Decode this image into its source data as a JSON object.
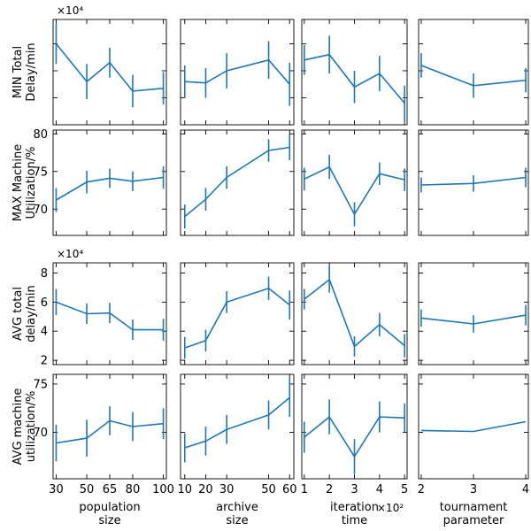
{
  "chart_data": {
    "type": "line",
    "grid": false,
    "line_color": "#1f77b4",
    "columns": [
      {
        "xlabel": "population\nsize",
        "x": [
          30,
          50,
          65,
          80,
          100
        ],
        "xticks": [
          30,
          50,
          65,
          80,
          100
        ],
        "xtick_labels": [
          "30",
          "50",
          "65",
          "80",
          "100"
        ],
        "xlim": [
          28,
          102
        ],
        "offset": ""
      },
      {
        "xlabel": "archive\nsize",
        "x": [
          10,
          20,
          30,
          50,
          60
        ],
        "xticks": [
          10,
          20,
          30,
          50,
          60
        ],
        "xtick_labels": [
          "10",
          "20",
          "30",
          "50",
          "60"
        ],
        "xlim": [
          8,
          62
        ],
        "offset": ""
      },
      {
        "xlabel": "iteration\ntime",
        "x": [
          1,
          2,
          3,
          4,
          5
        ],
        "xticks": [
          1,
          2,
          3,
          4,
          5
        ],
        "xtick_labels": [
          "1",
          "2",
          "3",
          "4",
          "5"
        ],
        "xlim": [
          0.9,
          5.1
        ],
        "offset": "×10²"
      },
      {
        "xlabel": "tournament\nparameter",
        "x": [
          2,
          3,
          4
        ],
        "xticks": [
          2,
          3,
          4
        ],
        "xtick_labels": [
          "2",
          "3",
          "4"
        ],
        "xlim": [
          1.95,
          4.05
        ],
        "offset": ""
      }
    ],
    "rows": [
      {
        "ylabel": "MIN Total\nDelay/min",
        "ylim": [
          10000,
          49000
        ],
        "yticks": [
          20000,
          30000,
          40000
        ],
        "ytick_labels": [
          "",
          "",
          ""
        ],
        "offset": "×10⁴",
        "series": [
          {
            "y": [
              40000,
              26000,
              33000,
              22500,
              23500
            ],
            "err": [
              7500,
              6500,
              5500,
              6000,
              6000
            ]
          },
          {
            "y": [
              26000,
              25500,
              30000,
              34000,
              25000
            ],
            "err": [
              6000,
              5500,
              6500,
              7000,
              8000
            ]
          },
          {
            "y": [
              34000,
              36000,
              24000,
              29000,
              18000
            ],
            "err": [
              5500,
              7000,
              6000,
              6500,
              6500
            ]
          },
          {
            "y": [
              32000,
              24500,
              26500
            ],
            "err": [
              4500,
              4500,
              4500
            ]
          }
        ]
      },
      {
        "ylabel": "MAX Machine\nUtilization/%",
        "ylim": [
          66.5,
          80.5
        ],
        "yticks": [
          70,
          75,
          80
        ],
        "ytick_labels": [
          "70",
          "75",
          "80"
        ],
        "offset": "",
        "series": [
          {
            "y": [
              71.2,
              73.6,
              74.1,
              73.7,
              74.2
            ],
            "err": [
              1.6,
              1.5,
              1.3,
              1.3,
              1.5
            ]
          },
          {
            "y": [
              69.0,
              71.3,
              74.2,
              77.8,
              78.2
            ],
            "err": [
              1.6,
              1.5,
              1.5,
              1.5,
              1.7
            ]
          },
          {
            "y": [
              74.0,
              75.6,
              69.3,
              74.7,
              73.9
            ],
            "err": [
              1.5,
              1.6,
              1.6,
              1.5,
              1.5
            ]
          },
          {
            "y": [
              73.2,
              73.4,
              74.2
            ],
            "err": [
              1.0,
              1.1,
              1.3
            ]
          }
        ]
      },
      {
        "ylabel": "AVG total\ndelay/min",
        "ylim": [
          17000,
          87000
        ],
        "yticks": [
          20000,
          40000,
          60000,
          80000
        ],
        "ytick_labels": [
          "2",
          "4",
          "6",
          "8"
        ],
        "offset": "×10⁴",
        "series": [
          {
            "y": [
              60000,
              52000,
              52500,
              41000,
              41000
            ],
            "err": [
              9000,
              7000,
              7000,
              7000,
              7500
            ]
          },
          {
            "y": [
              28500,
              33500,
              60000,
              69500,
              58000
            ],
            "err": [
              7500,
              7500,
              7500,
              8000,
              10000
            ]
          },
          {
            "y": [
              62000,
              75500,
              29500,
              44500,
              30000
            ],
            "err": [
              7000,
              9000,
              7000,
              8000,
              8000
            ]
          },
          {
            "y": [
              49000,
              45000,
              51000
            ],
            "err": [
              6000,
              6000,
              7000
            ]
          }
        ]
      },
      {
        "ylabel": "AVG machine\nutilization/%",
        "ylim": [
          65.2,
          76.0
        ],
        "yticks": [
          70,
          75
        ],
        "ytick_labels": [
          "70",
          "75"
        ],
        "offset": "",
        "series": [
          {
            "y": [
              68.9,
              69.4,
              71.2,
              70.6,
              70.9
            ],
            "err": [
              1.9,
              1.9,
              1.5,
              1.5,
              1.6
            ]
          },
          {
            "y": [
              68.4,
              69.1,
              70.3,
              71.8,
              73.6
            ],
            "err": [
              1.5,
              1.5,
              1.5,
              1.5,
              2.0
            ]
          },
          {
            "y": [
              69.5,
              71.6,
              67.5,
              71.6,
              71.5
            ],
            "err": [
              1.6,
              1.8,
              1.8,
              1.6,
              1.5
            ]
          },
          {
            "y": [
              70.2,
              70.1,
              71.1
            ],
            "err": [
              0.0,
              0.0,
              0.0
            ]
          }
        ]
      }
    ]
  }
}
